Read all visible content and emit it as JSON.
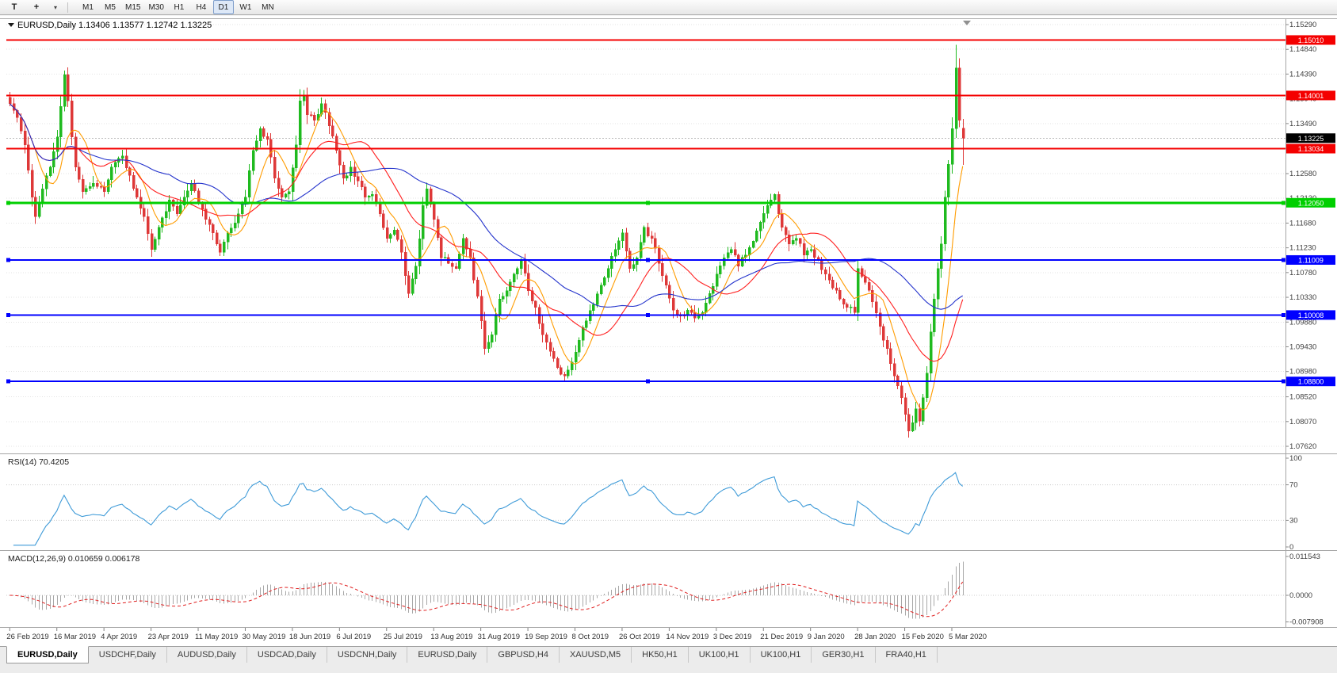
{
  "toolbar": {
    "buttons": [
      {
        "label": "T"
      },
      {
        "label": "+"
      },
      {
        "label": "▾"
      }
    ],
    "timeframes": [
      "M1",
      "M5",
      "M15",
      "M30",
      "H1",
      "H4",
      "D1",
      "W1",
      "MN"
    ],
    "active_timeframe": "D1"
  },
  "chart": {
    "title": "EURUSD,Daily 1.13406 1.13577 1.12742 1.13225",
    "symbol_menu_icon": "▼"
  },
  "price_axis": {
    "ticks": [
      "1.15290",
      "1.14840",
      "1.14390",
      "1.13940",
      "1.13490",
      "1.13040",
      "1.12580",
      "1.12130",
      "1.11680",
      "1.11230",
      "1.10780",
      "1.10330",
      "1.09880",
      "1.09430",
      "1.08980",
      "1.08520",
      "1.08070",
      "1.07620"
    ],
    "current": "1.13225",
    "current_bg": "#000000"
  },
  "hlines": [
    {
      "label": "1.15010",
      "price": 1.1501,
      "color": "#f40000",
      "width": 2,
      "handles": false
    },
    {
      "label": "1.14001",
      "price": 1.14001,
      "color": "#f40000",
      "width": 2,
      "handles": false
    },
    {
      "label": "1.13034",
      "price": 1.13034,
      "color": "#f40000",
      "width": 2,
      "handles": false
    },
    {
      "label": "1.12050",
      "price": 1.1205,
      "color": "#00cf00",
      "width": 3,
      "handles": true
    },
    {
      "label": "1.11009",
      "price": 1.11009,
      "color": "#0000ff",
      "width": 2,
      "handles": true
    },
    {
      "label": "1.10008",
      "price": 1.10008,
      "color": "#0000ff",
      "width": 2,
      "handles": true
    },
    {
      "label": "1.08800",
      "price": 1.088,
      "color": "#0000ff",
      "width": 2,
      "handles": true
    }
  ],
  "rsi": {
    "label": "RSI(14) 70.4205",
    "axis": [
      "100",
      "70",
      "30",
      "0"
    ],
    "levels": [
      70,
      30
    ],
    "color": "#3f9bd8"
  },
  "macd": {
    "label": "MACD(12,26,9) 0.010659 0.006178",
    "axis": [
      "0.011543",
      "0.0000",
      "-0.007908"
    ],
    "hist_color": "#a8a8a8",
    "signal_color": "#e02020"
  },
  "date_axis": [
    "26 Feb 2019",
    "16 Mar 2019",
    "4 Apr 2019",
    "23 Apr 2019",
    "11 May 2019",
    "30 May 2019",
    "18 Jun 2019",
    "6 Jul 2019",
    "25 Jul 2019",
    "13 Aug 2019",
    "31 Aug 2019",
    "19 Sep 2019",
    "8 Oct 2019",
    "26 Oct 2019",
    "14 Nov 2019",
    "3 Dec 2019",
    "21 Dec 2019",
    "9 Jan 2020",
    "28 Jan 2020",
    "15 Feb 2020",
    "5 Mar 2020"
  ],
  "tabs": [
    "EURUSD,Daily",
    "USDCHF,Daily",
    "AUDUSD,Daily",
    "USDCAD,Daily",
    "USDCNH,Daily",
    "EURUSD,Daily",
    "GBPUSD,H4",
    "XAUUSD,M5",
    "HK50,H1",
    "UK100,H1",
    "UK100,H1",
    "GER30,H1",
    "FRA40,H1"
  ],
  "active_tab": 0,
  "chart_data": {
    "type": "candlestick",
    "symbol": "EURUSD",
    "period": "Daily",
    "title": "EURUSD,Daily 1.13406 1.13577 1.12742 1.13225",
    "bars": 264,
    "label_step": 13,
    "seed": 11,
    "noise": 0.0012,
    "bull_color": "#1fba1f",
    "bear_color": "#de3838",
    "price_range": [
      1.07505,
      1.15377
    ],
    "ma": [
      {
        "period": 8,
        "color": "#ff9c00"
      },
      {
        "period": 20,
        "color": "#ff2020"
      },
      {
        "period": 45,
        "color": "#2433cc"
      }
    ],
    "indicators": [
      "RSI(14)",
      "MACD(12,26,9)"
    ],
    "anchors": [
      [
        0,
        1.1385
      ],
      [
        2,
        1.136
      ],
      [
        4,
        1.131
      ],
      [
        6,
        1.1215
      ],
      [
        7,
        1.118
      ],
      [
        9,
        1.123
      ],
      [
        11,
        1.127
      ],
      [
        13,
        1.1325
      ],
      [
        14,
        1.138
      ],
      [
        15,
        1.1438
      ],
      [
        16,
        1.139
      ],
      [
        18,
        1.127
      ],
      [
        20,
        1.1225
      ],
      [
        23,
        1.124
      ],
      [
        26,
        1.1225
      ],
      [
        28,
        1.127
      ],
      [
        31,
        1.129
      ],
      [
        33,
        1.1255
      ],
      [
        35,
        1.1215
      ],
      [
        37,
        1.118
      ],
      [
        39,
        1.112
      ],
      [
        41,
        1.116
      ],
      [
        44,
        1.121
      ],
      [
        46,
        1.1185
      ],
      [
        48,
        1.1215
      ],
      [
        50,
        1.124
      ],
      [
        52,
        1.1205
      ],
      [
        54,
        1.1175
      ],
      [
        56,
        1.115
      ],
      [
        58,
        1.1115
      ],
      [
        60,
        1.115
      ],
      [
        63,
        1.1185
      ],
      [
        65,
        1.1215
      ],
      [
        67,
        1.13
      ],
      [
        69,
        1.134
      ],
      [
        71,
        1.132
      ],
      [
        73,
        1.125
      ],
      [
        75,
        1.1215
      ],
      [
        77,
        1.1225
      ],
      [
        79,
        1.131
      ],
      [
        80,
        1.139
      ],
      [
        81,
        1.14
      ],
      [
        82,
        1.1365
      ],
      [
        84,
        1.1355
      ],
      [
        86,
        1.1385
      ],
      [
        88,
        1.1345
      ],
      [
        90,
        1.13
      ],
      [
        92,
        1.125
      ],
      [
        94,
        1.127
      ],
      [
        96,
        1.1245
      ],
      [
        98,
        1.1215
      ],
      [
        100,
        1.122
      ],
      [
        102,
        1.1185
      ],
      [
        104,
        1.114
      ],
      [
        106,
        1.1155
      ],
      [
        108,
        1.1115
      ],
      [
        110,
        1.104
      ],
      [
        112,
        1.109
      ],
      [
        114,
        1.12
      ],
      [
        115,
        1.123
      ],
      [
        117,
        1.1175
      ],
      [
        119,
        1.1105
      ],
      [
        121,
        1.1095
      ],
      [
        123,
        1.1085
      ],
      [
        125,
        1.114
      ],
      [
        127,
        1.1105
      ],
      [
        129,
        1.1035
      ],
      [
        131,
        1.094
      ],
      [
        133,
        1.0965
      ],
      [
        135,
        1.103
      ],
      [
        137,
        1.1045
      ],
      [
        139,
        1.1075
      ],
      [
        141,
        1.11
      ],
      [
        143,
        1.1045
      ],
      [
        145,
        1.1015
      ],
      [
        147,
        1.0965
      ],
      [
        149,
        1.0935
      ],
      [
        151,
        1.0905
      ],
      [
        153,
        1.089
      ],
      [
        155,
        1.0915
      ],
      [
        157,
        1.0955
      ],
      [
        159,
        1.099
      ],
      [
        161,
        1.102
      ],
      [
        163,
        1.1055
      ],
      [
        165,
        1.1085
      ],
      [
        167,
        1.112
      ],
      [
        169,
        1.115
      ],
      [
        171,
        1.1085
      ],
      [
        173,
        1.1105
      ],
      [
        175,
        1.116
      ],
      [
        177,
        1.114
      ],
      [
        179,
        1.1095
      ],
      [
        181,
        1.1055
      ],
      [
        183,
        1.101
      ],
      [
        185,
        1.1
      ],
      [
        187,
        1.101
      ],
      [
        189,
        1.0995
      ],
      [
        191,
        1.1005
      ],
      [
        193,
        1.104
      ],
      [
        195,
        1.1075
      ],
      [
        197,
        1.1105
      ],
      [
        199,
        1.112
      ],
      [
        201,
        1.109
      ],
      [
        203,
        1.111
      ],
      [
        205,
        1.1135
      ],
      [
        207,
        1.117
      ],
      [
        209,
        1.12
      ],
      [
        211,
        1.122
      ],
      [
        213,
        1.116
      ],
      [
        215,
        1.113
      ],
      [
        217,
        1.114
      ],
      [
        219,
        1.111
      ],
      [
        221,
        1.112
      ],
      [
        223,
        1.11
      ],
      [
        225,
        1.1075
      ],
      [
        227,
        1.105
      ],
      [
        229,
        1.103
      ],
      [
        231,
        1.1015
      ],
      [
        233,
        1.1005
      ],
      [
        234,
        1.1085
      ],
      [
        236,
        1.106
      ],
      [
        238,
        1.1025
      ],
      [
        240,
        1.098
      ],
      [
        242,
        1.094
      ],
      [
        244,
        1.089
      ],
      [
        246,
        1.085
      ],
      [
        248,
        1.079
      ],
      [
        249,
        1.0805
      ],
      [
        250,
        1.083
      ],
      [
        251,
        1.0808
      ],
      [
        252,
        1.085
      ],
      [
        253,
        1.0895
      ],
      [
        254,
        1.097
      ],
      [
        255,
        1.103
      ],
      [
        256,
        1.1085
      ],
      [
        257,
        1.113
      ],
      [
        258,
        1.1215
      ],
      [
        259,
        1.1275
      ],
      [
        260,
        1.134
      ],
      [
        261,
        1.145
      ],
      [
        262,
        1.1355
      ],
      [
        263,
        1.13225
      ]
    ],
    "overrides": {
      "261": {
        "h": 1.1492
      },
      "263": {
        "o": 1.13406,
        "h": 1.13577,
        "l": 1.12742,
        "c": 1.13225
      }
    }
  }
}
